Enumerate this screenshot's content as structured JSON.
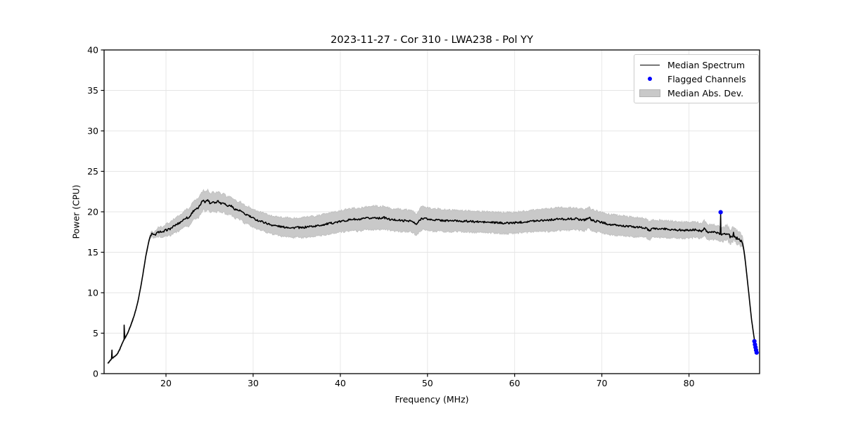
{
  "chart_data": {
    "type": "line",
    "title": "2023-11-27 - Cor 310 - LWA238 - Pol YY",
    "xlabel": "Frequency (MHz)",
    "ylabel": "Power (CPU)",
    "xlim": [
      12.9,
      88.1
    ],
    "ylim": [
      0,
      40
    ],
    "xticks": [
      20,
      30,
      40,
      50,
      60,
      70,
      80
    ],
    "yticks": [
      0,
      5,
      10,
      15,
      20,
      25,
      30,
      35,
      40
    ],
    "grid": true,
    "legend": {
      "position": "upper right",
      "items": [
        {
          "label": "Median Spectrum",
          "glyph": "line"
        },
        {
          "label": "Flagged Channels",
          "glyph": "dot"
        },
        {
          "label": "Median Abs. Dev.",
          "glyph": "patch"
        }
      ]
    },
    "colors": {
      "line": "#000000",
      "flagged": "#0000ff",
      "band_fill": "#c9c9c9",
      "band_edge": "#bdbdbd",
      "grid": "#e5e5e5",
      "spine": "#000000",
      "background": "#ffffff"
    },
    "median_spectrum": {
      "units": "MHz_vs_CPU",
      "points": [
        [
          13.35,
          1.3
        ],
        [
          13.5,
          1.5
        ],
        [
          13.75,
          1.8
        ],
        [
          13.87,
          1.9
        ],
        [
          14.1,
          2.1
        ],
        [
          14.4,
          2.4
        ],
        [
          14.7,
          3.0
        ],
        [
          15.0,
          3.8
        ],
        [
          15.13,
          4.1
        ],
        [
          15.3,
          4.4
        ],
        [
          15.6,
          5.0
        ],
        [
          15.9,
          5.8
        ],
        [
          16.2,
          6.7
        ],
        [
          16.5,
          7.7
        ],
        [
          16.8,
          9.0
        ],
        [
          17.1,
          10.7
        ],
        [
          17.4,
          12.6
        ],
        [
          17.7,
          14.6
        ],
        [
          18.0,
          16.2
        ],
        [
          18.2,
          17.0
        ],
        [
          18.4,
          17.3
        ],
        [
          18.6,
          17.1
        ],
        [
          18.8,
          17.2
        ],
        [
          19.0,
          17.4
        ],
        [
          19.3,
          17.6
        ],
        [
          19.6,
          17.4
        ],
        [
          19.9,
          17.7
        ],
        [
          20.2,
          17.8
        ],
        [
          20.5,
          17.9
        ],
        [
          21.0,
          18.3
        ],
        [
          21.5,
          18.6
        ],
        [
          22.0,
          19.0
        ],
        [
          22.3,
          19.3
        ],
        [
          22.6,
          19.2
        ],
        [
          23.0,
          19.9
        ],
        [
          23.3,
          20.3
        ],
        [
          23.7,
          20.4
        ],
        [
          24.0,
          21.0
        ],
        [
          24.3,
          21.5
        ],
        [
          24.5,
          21.2
        ],
        [
          24.8,
          21.5
        ],
        [
          25.1,
          21.0
        ],
        [
          25.4,
          21.3
        ],
        [
          25.7,
          21.1
        ],
        [
          26.0,
          21.4
        ],
        [
          26.3,
          21.0
        ],
        [
          26.6,
          21.2
        ],
        [
          27.0,
          20.7
        ],
        [
          27.4,
          20.8
        ],
        [
          27.8,
          20.4
        ],
        [
          28.2,
          20.2
        ],
        [
          28.6,
          20.1
        ],
        [
          29.0,
          19.7
        ],
        [
          29.4,
          19.6
        ],
        [
          29.8,
          19.3
        ],
        [
          30.2,
          19.1
        ],
        [
          30.6,
          18.9
        ],
        [
          31.0,
          18.8
        ],
        [
          31.5,
          18.6
        ],
        [
          32.0,
          18.4
        ],
        [
          32.5,
          18.3
        ],
        [
          33.0,
          18.2
        ],
        [
          33.5,
          18.1
        ],
        [
          34.0,
          18.1
        ],
        [
          34.5,
          18.0
        ],
        [
          35.0,
          18.1
        ],
        [
          35.5,
          18.0
        ],
        [
          36.0,
          18.1
        ],
        [
          36.5,
          18.2
        ],
        [
          37.0,
          18.2
        ],
        [
          37.5,
          18.3
        ],
        [
          38.0,
          18.4
        ],
        [
          38.5,
          18.5
        ],
        [
          39.0,
          18.6
        ],
        [
          39.5,
          18.7
        ],
        [
          40.0,
          18.8
        ],
        [
          40.5,
          18.9
        ],
        [
          41.0,
          19.0
        ],
        [
          41.5,
          19.1
        ],
        [
          42.0,
          19.0
        ],
        [
          42.5,
          19.1
        ],
        [
          43.0,
          19.2
        ],
        [
          43.5,
          19.2
        ],
        [
          44.0,
          19.3
        ],
        [
          44.5,
          19.2
        ],
        [
          45.0,
          19.3
        ],
        [
          45.5,
          19.1
        ],
        [
          46.0,
          19.0
        ],
        [
          46.5,
          19.0
        ],
        [
          47.0,
          18.9
        ],
        [
          47.5,
          18.9
        ],
        [
          48.0,
          18.9
        ],
        [
          48.4,
          18.7
        ],
        [
          48.7,
          18.4
        ],
        [
          49.0,
          18.8
        ],
        [
          49.3,
          19.2
        ],
        [
          49.7,
          19.2
        ],
        [
          50.0,
          19.1
        ],
        [
          50.5,
          19.0
        ],
        [
          51.0,
          19.0
        ],
        [
          52.0,
          18.9
        ],
        [
          53.0,
          18.9
        ],
        [
          54.0,
          18.85
        ],
        [
          55.0,
          18.8
        ],
        [
          56.0,
          18.75
        ],
        [
          57.0,
          18.7
        ],
        [
          58.0,
          18.65
        ],
        [
          59.0,
          18.6
        ],
        [
          60.0,
          18.65
        ],
        [
          61.0,
          18.75
        ],
        [
          62.0,
          18.85
        ],
        [
          63.0,
          18.95
        ],
        [
          64.0,
          19.0
        ],
        [
          65.0,
          19.1
        ],
        [
          66.0,
          19.1
        ],
        [
          67.0,
          19.15
        ],
        [
          67.5,
          19.05
        ],
        [
          68.0,
          19.0
        ],
        [
          68.6,
          19.3
        ],
        [
          68.8,
          18.95
        ],
        [
          69.5,
          18.8
        ],
        [
          70.0,
          18.7
        ],
        [
          70.5,
          18.55
        ],
        [
          71.0,
          18.4
        ],
        [
          72.0,
          18.3
        ],
        [
          73.0,
          18.2
        ],
        [
          74.0,
          18.1
        ],
        [
          75.0,
          18.0
        ],
        [
          75.55,
          17.6
        ],
        [
          75.8,
          17.95
        ],
        [
          76.5,
          17.9
        ],
        [
          77.0,
          17.9
        ],
        [
          78.0,
          17.8
        ],
        [
          79.0,
          17.75
        ],
        [
          80.0,
          17.7
        ],
        [
          80.7,
          17.8
        ],
        [
          81.4,
          17.6
        ],
        [
          81.75,
          18.0
        ],
        [
          82.1,
          17.5
        ],
        [
          82.8,
          17.5
        ],
        [
          83.3,
          17.35
        ],
        [
          83.55,
          17.3
        ],
        [
          83.72,
          17.25
        ],
        [
          84.0,
          17.2
        ],
        [
          84.3,
          17.5
        ],
        [
          84.7,
          16.9
        ],
        [
          85.1,
          17.2
        ],
        [
          85.5,
          16.8
        ],
        [
          85.9,
          16.6
        ],
        [
          86.15,
          16.3
        ],
        [
          86.4,
          14.5
        ],
        [
          86.8,
          10.5
        ],
        [
          87.2,
          6.5
        ],
        [
          87.5,
          4.2
        ],
        [
          87.65,
          3.3
        ],
        [
          87.78,
          2.7
        ]
      ]
    },
    "spikes": [
      [
        13.8,
        2.9
      ],
      [
        15.2,
        6.0
      ],
      [
        83.63,
        19.7
      ]
    ],
    "mad_band": {
      "description": "half-width of Median Abs. Dev. band around median, CPU units",
      "points": [
        [
          13.35,
          0.06
        ],
        [
          15.0,
          0.08
        ],
        [
          16.0,
          0.1
        ],
        [
          17.0,
          0.12
        ],
        [
          18.0,
          0.2
        ],
        [
          18.5,
          0.35
        ],
        [
          19.0,
          0.55
        ],
        [
          20.0,
          0.75
        ],
        [
          21.0,
          0.9
        ],
        [
          22.0,
          1.0
        ],
        [
          23.0,
          1.1
        ],
        [
          24.0,
          1.2
        ],
        [
          25.0,
          1.2
        ],
        [
          26.0,
          1.2
        ],
        [
          27.0,
          1.15
        ],
        [
          28.0,
          1.1
        ],
        [
          29.0,
          1.1
        ],
        [
          30.0,
          1.1
        ],
        [
          31.0,
          1.1
        ],
        [
          32.0,
          1.1
        ],
        [
          33.0,
          1.15
        ],
        [
          34.0,
          1.2
        ],
        [
          35.0,
          1.2
        ],
        [
          36.0,
          1.25
        ],
        [
          37.0,
          1.25
        ],
        [
          38.0,
          1.3
        ],
        [
          39.0,
          1.3
        ],
        [
          40.0,
          1.35
        ],
        [
          41.0,
          1.35
        ],
        [
          42.0,
          1.4
        ],
        [
          43.0,
          1.4
        ],
        [
          44.0,
          1.45
        ],
        [
          45.0,
          1.4
        ],
        [
          46.0,
          1.4
        ],
        [
          47.0,
          1.35
        ],
        [
          48.0,
          1.35
        ],
        [
          48.7,
          1.3
        ],
        [
          49.3,
          1.45
        ],
        [
          50.0,
          1.4
        ],
        [
          51.0,
          1.4
        ],
        [
          52.0,
          1.35
        ],
        [
          53.0,
          1.35
        ],
        [
          54.0,
          1.3
        ],
        [
          55.0,
          1.3
        ],
        [
          56.0,
          1.3
        ],
        [
          57.0,
          1.3
        ],
        [
          58.0,
          1.3
        ],
        [
          59.0,
          1.3
        ],
        [
          60.0,
          1.3
        ],
        [
          61.0,
          1.3
        ],
        [
          62.0,
          1.35
        ],
        [
          63.0,
          1.35
        ],
        [
          64.0,
          1.4
        ],
        [
          65.0,
          1.4
        ],
        [
          66.0,
          1.4
        ],
        [
          67.0,
          1.35
        ],
        [
          68.0,
          1.35
        ],
        [
          69.0,
          1.3
        ],
        [
          70.0,
          1.3
        ],
        [
          71.0,
          1.25
        ],
        [
          72.0,
          1.25
        ],
        [
          73.0,
          1.2
        ],
        [
          74.0,
          1.2
        ],
        [
          75.0,
          1.15
        ],
        [
          76.0,
          1.1
        ],
        [
          77.0,
          1.05
        ],
        [
          78.0,
          1.05
        ],
        [
          79.0,
          1.0
        ],
        [
          80.0,
          1.0
        ],
        [
          81.0,
          0.95
        ],
        [
          82.0,
          0.95
        ],
        [
          83.0,
          0.9
        ],
        [
          84.0,
          0.9
        ],
        [
          85.0,
          0.85
        ],
        [
          85.9,
          0.7
        ],
        [
          86.3,
          0.45
        ],
        [
          86.8,
          0.2
        ],
        [
          87.2,
          0.12
        ],
        [
          87.78,
          0.08
        ]
      ]
    },
    "flagged_channels": {
      "points": [
        [
          83.63,
          19.95
        ],
        [
          87.5,
          4.0
        ],
        [
          87.57,
          3.6
        ],
        [
          87.63,
          3.25
        ],
        [
          87.7,
          2.9
        ],
        [
          87.76,
          2.6
        ]
      ]
    },
    "noise": {
      "sample_step_mhz": 0.08,
      "default_amp": 0.03,
      "regions": [
        {
          "from": 18.3,
          "to": 84.0,
          "amp": 0.12
        },
        {
          "from": 84.0,
          "to": 86.25,
          "amp": 0.3
        }
      ],
      "band_edge_jitter": 0.13
    }
  }
}
